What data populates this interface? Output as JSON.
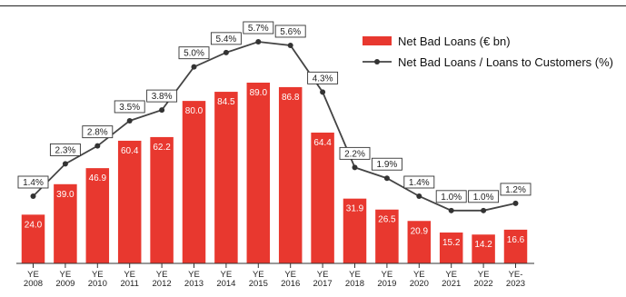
{
  "chart_data": {
    "type": "bar+line",
    "categories": [
      [
        "YE",
        "2008"
      ],
      [
        "YE",
        "2009"
      ],
      [
        "YE",
        "2010"
      ],
      [
        "YE",
        "2011"
      ],
      [
        "YE",
        "2012"
      ],
      [
        "YE",
        "2013"
      ],
      [
        "YE",
        "2014"
      ],
      [
        "YE",
        "2015"
      ],
      [
        "YE",
        "2016"
      ],
      [
        "YE",
        "2017"
      ],
      [
        "YE",
        "2018"
      ],
      [
        "YE",
        "2019"
      ],
      [
        "YE",
        "2020"
      ],
      [
        "YE",
        "2021"
      ],
      [
        "YE",
        "2022"
      ],
      [
        "YE-",
        "2023"
      ]
    ],
    "series": [
      {
        "name": "Net Bad Loans (€ bn)",
        "kind": "bar",
        "color": "#e8382f",
        "values": [
          24.0,
          39.0,
          46.9,
          60.4,
          62.2,
          80.0,
          84.5,
          89.0,
          86.8,
          64.4,
          31.9,
          26.5,
          20.9,
          15.2,
          14.2,
          16.6
        ],
        "labels": [
          "24.0",
          "39.0",
          "46.9",
          "60.4",
          "62.2",
          "80.0",
          "84.5",
          "89.0",
          "86.8",
          "64.4",
          "31.9",
          "26.5",
          "20.9",
          "15.2",
          "14.2",
          "16.6"
        ]
      },
      {
        "name": "Net Bad Loans / Loans to Customers (%)",
        "kind": "line",
        "color": "#444444",
        "values": [
          1.4,
          2.3,
          2.8,
          3.5,
          3.8,
          5.0,
          5.4,
          5.7,
          5.6,
          4.3,
          2.2,
          1.9,
          1.4,
          1.0,
          1.0,
          1.2
        ],
        "labels": [
          "1.4%",
          "2.3%",
          "2.8%",
          "3.5%",
          "3.8%",
          "5.0%",
          "5.4%",
          "5.7%",
          "5.6%",
          "4.3%",
          "2.2%",
          "1.9%",
          "1.4%",
          "1.0%",
          "1.0%",
          "1.2%"
        ]
      }
    ],
    "bar_ylim": [
      0,
      100
    ],
    "line_ylim": [
      0,
      6.0
    ],
    "legend_position": "top-right",
    "grid": false
  }
}
